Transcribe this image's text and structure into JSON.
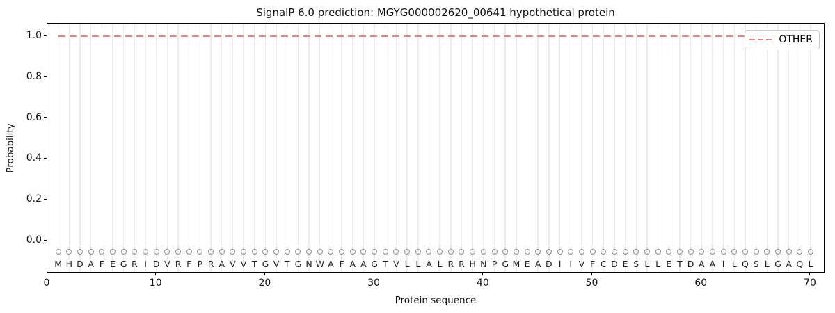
{
  "figure": {
    "title": "SignalP 6.0 prediction: MGYG000002620_00641 hypothetical protein",
    "xlabel": "Protein sequence",
    "ylabel": "Probability"
  },
  "legend": {
    "position": "upper-right",
    "entries": [
      {
        "label": "OTHER",
        "linestyle": "dashed",
        "color": "#f08080"
      }
    ]
  },
  "axes": {
    "x_ticks": [
      "0",
      "10",
      "20",
      "30",
      "40",
      "50",
      "60",
      "70"
    ],
    "y_ticks": [
      "0.0",
      "0.2",
      "0.4",
      "0.6",
      "0.8",
      "1.0"
    ]
  },
  "colors": {
    "other_line": "#f08080",
    "grid": "#ececec",
    "marker": "#8f8f8f",
    "spine": "#000000",
    "text": "#1a1a1a",
    "legend_border": "#cccccc"
  },
  "chart_data": {
    "type": "line",
    "title": "SignalP 6.0 prediction: MGYG000002620_00641 hypothetical protein",
    "xlabel": "Protein sequence",
    "ylabel": "Probability",
    "xlim": [
      0,
      71.3
    ],
    "ylim": [
      -0.16,
      1.06
    ],
    "grid": "vertical gridline at every residue position 1-70",
    "legend_position": "upper right",
    "x": [
      1,
      2,
      3,
      4,
      5,
      6,
      7,
      8,
      9,
      10,
      11,
      12,
      13,
      14,
      15,
      16,
      17,
      18,
      19,
      20,
      21,
      22,
      23,
      24,
      25,
      26,
      27,
      28,
      29,
      30,
      31,
      32,
      33,
      34,
      35,
      36,
      37,
      38,
      39,
      40,
      41,
      42,
      43,
      44,
      45,
      46,
      47,
      48,
      49,
      50,
      51,
      52,
      53,
      54,
      55,
      56,
      57,
      58,
      59,
      60,
      61,
      62,
      63,
      64,
      65,
      66,
      67,
      68,
      69,
      70
    ],
    "series": [
      {
        "name": "OTHER",
        "color": "#f08080",
        "linestyle": "dashed",
        "values": [
          1.0,
          1.0,
          1.0,
          1.0,
          1.0,
          1.0,
          1.0,
          1.0,
          1.0,
          1.0,
          1.0,
          1.0,
          1.0,
          1.0,
          1.0,
          1.0,
          1.0,
          1.0,
          1.0,
          1.0,
          1.0,
          1.0,
          1.0,
          1.0,
          1.0,
          1.0,
          1.0,
          1.0,
          1.0,
          1.0,
          1.0,
          1.0,
          1.0,
          1.0,
          1.0,
          1.0,
          1.0,
          1.0,
          1.0,
          1.0,
          1.0,
          1.0,
          1.0,
          1.0,
          1.0,
          1.0,
          1.0,
          1.0,
          1.0,
          1.0,
          1.0,
          1.0,
          1.0,
          1.0,
          1.0,
          1.0,
          1.0,
          1.0,
          1.0,
          1.0,
          1.0,
          1.0,
          1.0,
          1.0,
          1.0,
          1.0,
          1.0,
          1.0,
          1.0,
          1.0
        ]
      }
    ],
    "sequence": "MHDAFEGRIDVRFPRAVVTGVTGNWAFAAGTVLLALRRHNPGMEADIIVFCDESLLETDAAILQSLGAQL",
    "sequence_marker": {
      "shape": "circle",
      "filled": false,
      "color": "#8f8f8f",
      "y": -0.055
    },
    "sequence_label_y": -0.115
  }
}
